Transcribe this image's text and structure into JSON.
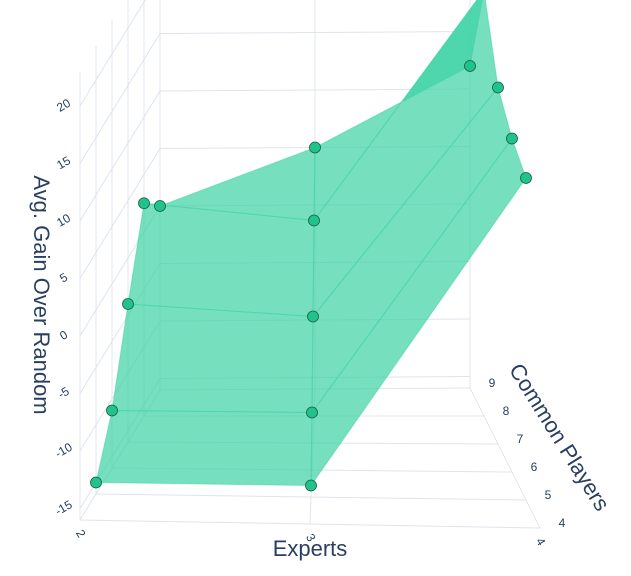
{
  "chart_data": {
    "type": "mesh3d",
    "x_title": "Experts",
    "y_title": "Common Players",
    "z_title": "Avg. Gain Over Random",
    "x": [
      2,
      2,
      2,
      2,
      2,
      3,
      3,
      3,
      3,
      3,
      4,
      4,
      4,
      4,
      4
    ],
    "y": [
      5,
      6,
      7,
      8,
      9,
      5,
      6,
      7,
      8,
      9,
      5,
      6,
      7,
      8,
      9
    ],
    "z": [
      -15,
      -11,
      -4,
      2.5,
      0,
      -15,
      -11,
      -5,
      1,
      5,
      12,
      13,
      15,
      21,
      12
    ],
    "color": "#40d3a5",
    "marker_color": "#1fc48a",
    "xlim": [
      2,
      4
    ],
    "ylim": [
      4,
      9
    ],
    "zlim": [
      -16,
      23
    ],
    "xticks": [
      2,
      3,
      4
    ],
    "yticks": [
      4,
      5,
      6,
      7,
      8,
      9
    ],
    "zticks": [
      -15,
      -10,
      -5,
      0,
      5,
      10,
      15,
      20
    ],
    "grid": true
  }
}
